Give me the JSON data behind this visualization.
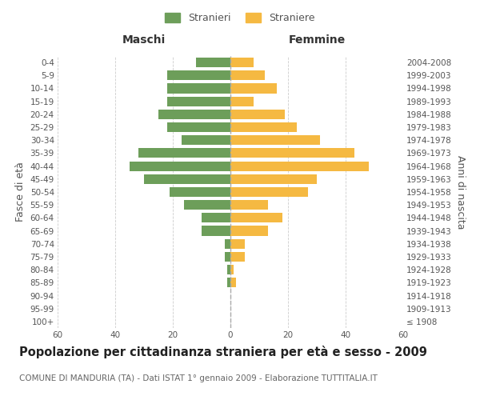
{
  "age_groups": [
    "100+",
    "95-99",
    "90-94",
    "85-89",
    "80-84",
    "75-79",
    "70-74",
    "65-69",
    "60-64",
    "55-59",
    "50-54",
    "45-49",
    "40-44",
    "35-39",
    "30-34",
    "25-29",
    "20-24",
    "15-19",
    "10-14",
    "5-9",
    "0-4"
  ],
  "birth_years": [
    "≤ 1908",
    "1909-1913",
    "1914-1918",
    "1919-1923",
    "1924-1928",
    "1929-1933",
    "1934-1938",
    "1939-1943",
    "1944-1948",
    "1949-1953",
    "1954-1958",
    "1959-1963",
    "1964-1968",
    "1969-1973",
    "1974-1978",
    "1979-1983",
    "1984-1988",
    "1989-1993",
    "1994-1998",
    "1999-2003",
    "2004-2008"
  ],
  "maschi": [
    0,
    0,
    0,
    1,
    1,
    2,
    2,
    10,
    10,
    16,
    21,
    30,
    35,
    32,
    17,
    22,
    25,
    22,
    22,
    22,
    12
  ],
  "femmine": [
    0,
    0,
    0,
    2,
    1,
    5,
    5,
    13,
    18,
    13,
    27,
    30,
    48,
    43,
    31,
    23,
    19,
    8,
    16,
    12,
    8
  ],
  "maschi_color": "#6d9e5a",
  "femmine_color": "#f5b942",
  "bg_color": "#ffffff",
  "grid_color": "#cccccc",
  "title": "Popolazione per cittadinanza straniera per età e sesso - 2009",
  "subtitle": "COMUNE DI MANDURIA (TA) - Dati ISTAT 1° gennaio 2009 - Elaborazione TUTTITALIA.IT",
  "ylabel_left": "Fasce di età",
  "ylabel_right": "Anni di nascita",
  "xlabel_left": "Maschi",
  "xlabel_right": "Femmine",
  "legend_maschi": "Stranieri",
  "legend_femmine": "Straniere",
  "xlim": 60,
  "title_fontsize": 10.5,
  "subtitle_fontsize": 7.5,
  "axis_label_fontsize": 9,
  "tick_fontsize": 7.5
}
